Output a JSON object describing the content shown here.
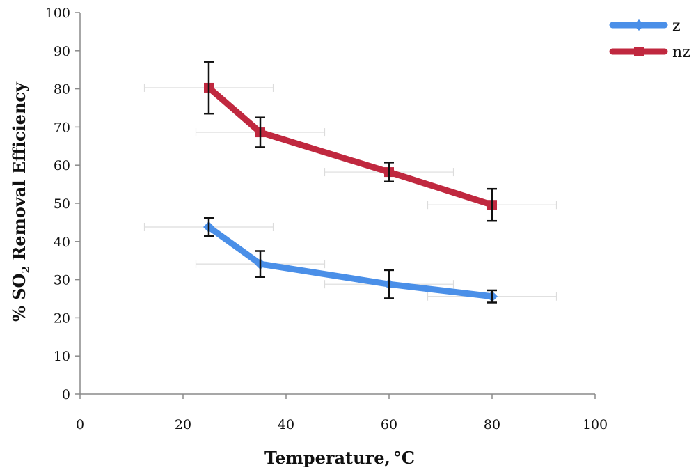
{
  "chart_data": {
    "type": "line",
    "xlabel": "Temperature,",
    "xlabel_unit": "°C",
    "ylabel": "% SO",
    "ylabel_sub": "2",
    "ylabel_rest": " Removal Efficiency",
    "xlim": [
      0,
      100
    ],
    "ylim": [
      0,
      100
    ],
    "x_ticks": [
      "0",
      "20",
      "40",
      "60",
      "80",
      "100"
    ],
    "y_ticks": [
      "0",
      "10",
      "20",
      "30",
      "40",
      "50",
      "60",
      "70",
      "80",
      "90",
      "100"
    ],
    "x": [
      25,
      35,
      60,
      80
    ],
    "legend_position": "top-right",
    "grid": false,
    "series": [
      {
        "name": "z",
        "color": "#4a8fe8",
        "marker": "diamond",
        "values": [
          43.8,
          34.1,
          28.8,
          25.6
        ],
        "y_err": [
          2.4,
          3.4,
          3.7,
          1.6
        ],
        "x_err": [
          12.5,
          12.5,
          12.5,
          12.5
        ]
      },
      {
        "name": "nz",
        "color": "#c0283f",
        "marker": "square",
        "values": [
          80.3,
          68.6,
          58.2,
          49.6
        ],
        "y_err": [
          6.8,
          3.9,
          2.5,
          4.2
        ],
        "x_err": [
          12.5,
          12.5,
          12.5,
          12.5
        ]
      }
    ]
  }
}
